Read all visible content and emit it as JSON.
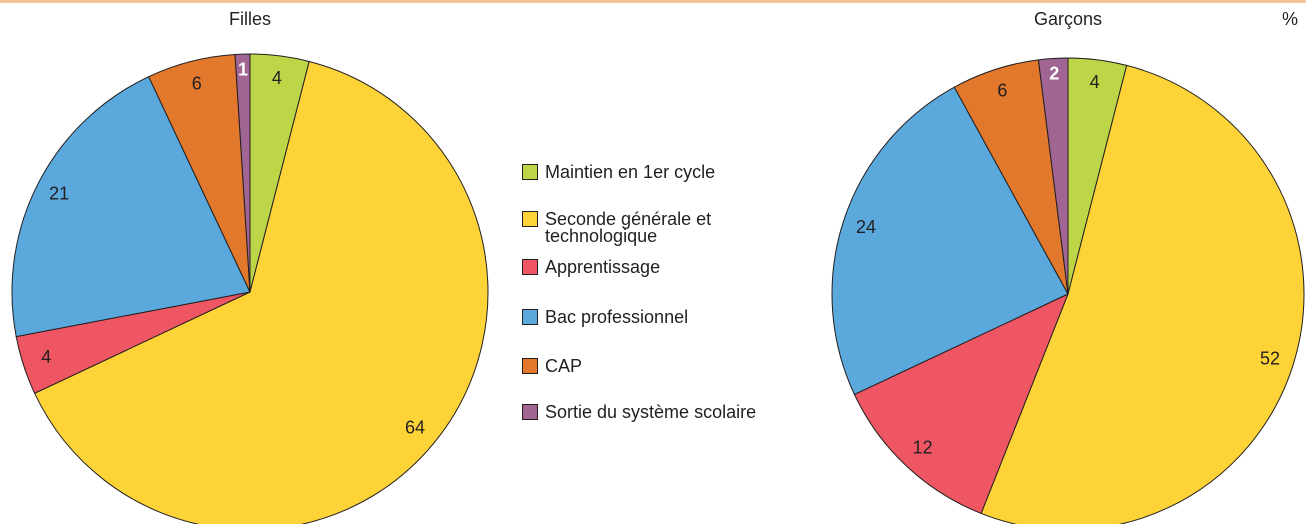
{
  "legend": {
    "labels": [
      "Maintien en 1er cycle",
      "Seconde générale et technologique",
      "Apprentissage",
      "Bac professionnel",
      "CAP",
      "Sortie du système scolaire"
    ],
    "colors": [
      "#bcd647",
      "#fdd338",
      "#ee5663",
      "#5aa8dc",
      "#e1782c",
      "#a16593"
    ]
  },
  "unit": "%",
  "chart_data": [
    {
      "type": "pie",
      "title": "Filles",
      "values": [
        4,
        64,
        4,
        21,
        6,
        1
      ]
    },
    {
      "type": "pie",
      "title": "Garçons",
      "values": [
        4,
        52,
        12,
        24,
        6,
        2
      ]
    }
  ]
}
